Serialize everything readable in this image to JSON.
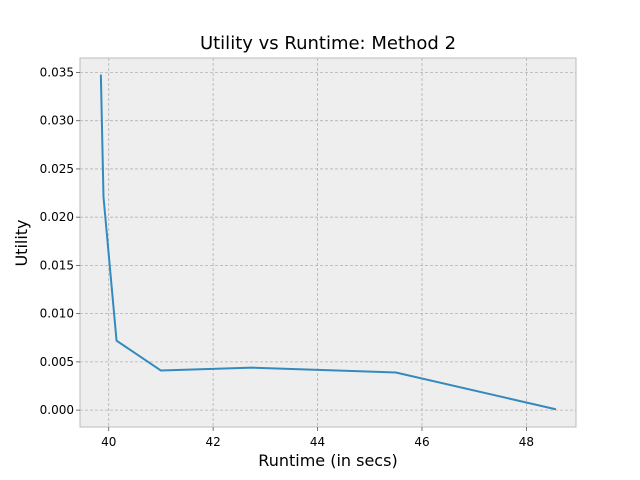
{
  "chart_data": {
    "type": "line",
    "title": "Utility vs Runtime: Method 2",
    "xlabel": "Runtime (in secs)",
    "ylabel": "Utility",
    "xlim": [
      39.45,
      48.95
    ],
    "ylim": [
      -0.00175,
      0.0365
    ],
    "x_ticks": [
      40,
      42,
      44,
      46,
      48
    ],
    "y_ticks": [
      0.0,
      0.005,
      0.01,
      0.015,
      0.02,
      0.025,
      0.03,
      0.035
    ],
    "x_tick_labels": [
      "40",
      "42",
      "44",
      "46",
      "48"
    ],
    "y_tick_labels": [
      "0.000",
      "0.005",
      "0.010",
      "0.015",
      "0.020",
      "0.025",
      "0.030",
      "0.035"
    ],
    "grid": true,
    "series": [
      {
        "color": "#348abd",
        "x": [
          39.85,
          39.9,
          40.15,
          41.0,
          42.75,
          45.5,
          48.55
        ],
        "y": [
          0.0347,
          0.0221,
          0.0072,
          0.0041,
          0.0044,
          0.0039,
          0.0001
        ]
      }
    ],
    "colors": {
      "plot_background": "#eeeeee",
      "grid": "#b2b2b2",
      "spine": "#bcbcbc",
      "line": "#348abd"
    }
  }
}
